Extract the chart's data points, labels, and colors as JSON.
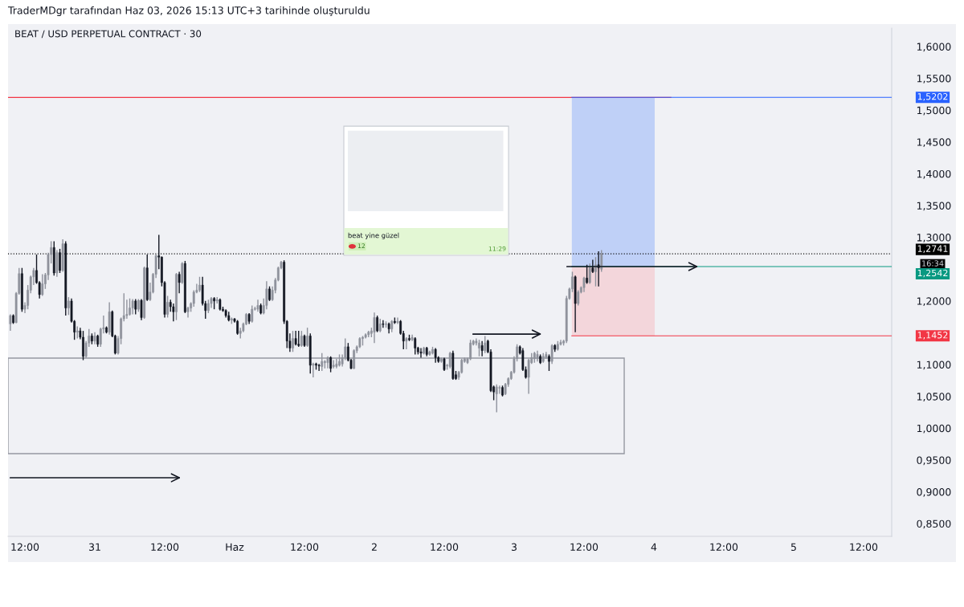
{
  "chart_data": {
    "type": "candlestick",
    "title": "TraderMDgr tarafından Haz 03, 2026 15:13 UTC+3 tarihinde oluşturuldu",
    "subtitle": "BEAT / USD PERPETUAL CONTRACT · 30",
    "annotations": [
      "beat yine güzel",
      "12",
      "11:29",
      "16:34"
    ],
    "x": [
      "2026-05-30T09:30",
      "2026-05-30T10:00",
      "2026-05-30T10:30",
      "2026-05-30T11:00",
      "2026-05-30T11:30",
      "2026-05-30T12:00",
      "2026-05-30T12:30",
      "2026-05-30T13:00",
      "2026-05-30T13:30",
      "2026-05-30T14:00",
      "2026-05-30T14:30",
      "2026-05-30T15:00",
      "2026-05-30T15:30",
      "2026-05-30T16:00",
      "2026-05-30T16:30",
      "2026-05-30T17:00",
      "2026-05-30T17:30",
      "2026-05-30T18:00",
      "2026-05-30T18:30",
      "2026-05-30T19:00",
      "2026-05-30T19:30",
      "2026-05-30T20:00",
      "2026-05-30T20:30",
      "2026-05-30T21:00",
      "2026-05-30T21:30",
      "2026-05-30T22:00",
      "2026-05-30T22:30",
      "2026-05-30T23:00",
      "2026-05-30T23:30",
      "2026-05-31T00:00",
      "2026-05-31T00:30",
      "2026-05-31T01:00",
      "2026-05-31T01:30",
      "2026-05-31T02:00",
      "2026-05-31T02:30",
      "2026-05-31T03:00",
      "2026-05-31T03:30",
      "2026-05-31T04:00",
      "2026-05-31T04:30",
      "2026-05-31T05:00",
      "2026-05-31T05:30",
      "2026-05-31T06:00",
      "2026-05-31T06:30",
      "2026-05-31T07:00",
      "2026-05-31T07:30",
      "2026-05-31T08:00",
      "2026-05-31T08:30",
      "2026-05-31T09:00",
      "2026-05-31T09:30",
      "2026-05-31T10:00",
      "2026-05-31T10:30",
      "2026-05-31T11:00",
      "2026-05-31T11:30",
      "2026-05-31T12:00",
      "2026-05-31T12:30",
      "2026-05-31T13:00",
      "2026-05-31T13:30",
      "2026-05-31T14:00",
      "2026-05-31T14:30",
      "2026-05-31T15:00",
      "2026-05-31T15:30",
      "2026-05-31T16:00",
      "2026-05-31T16:30",
      "2026-05-31T17:00",
      "2026-05-31T17:30",
      "2026-05-31T18:00",
      "2026-05-31T18:30",
      "2026-05-31T19:00",
      "2026-05-31T19:30",
      "2026-05-31T20:00",
      "2026-05-31T20:30",
      "2026-05-31T21:00",
      "2026-05-31T21:30",
      "2026-05-31T22:00",
      "2026-05-31T22:30",
      "2026-05-31T23:00",
      "2026-05-31T23:30",
      "2026-06-01T00:00",
      "2026-06-01T00:30",
      "2026-06-01T01:00",
      "2026-06-01T01:30",
      "2026-06-01T02:00",
      "2026-06-01T02:30",
      "2026-06-01T03:00",
      "2026-06-01T03:30",
      "2026-06-01T04:00",
      "2026-06-01T04:30",
      "2026-06-01T05:00",
      "2026-06-01T05:30",
      "2026-06-01T06:00",
      "2026-06-01T06:30",
      "2026-06-01T07:00",
      "2026-06-01T07:30",
      "2026-06-01T08:00",
      "2026-06-01T08:30",
      "2026-06-01T09:00",
      "2026-06-01T09:30",
      "2026-06-01T10:00",
      "2026-06-01T10:30",
      "2026-06-01T11:00",
      "2026-06-01T11:30",
      "2026-06-01T12:00",
      "2026-06-01T12:30",
      "2026-06-01T13:00",
      "2026-06-01T13:30",
      "2026-06-01T14:00",
      "2026-06-01T14:30",
      "2026-06-01T15:00",
      "2026-06-01T15:30",
      "2026-06-01T16:00",
      "2026-06-01T16:30",
      "2026-06-01T17:00",
      "2026-06-01T17:30",
      "2026-06-01T18:00",
      "2026-06-01T18:30",
      "2026-06-01T19:00",
      "2026-06-01T19:30",
      "2026-06-01T20:00",
      "2026-06-01T20:30",
      "2026-06-01T21:00",
      "2026-06-01T21:30",
      "2026-06-01T22:00",
      "2026-06-01T22:30",
      "2026-06-01T23:00",
      "2026-06-01T23:30",
      "2026-06-02T00:00",
      "2026-06-02T00:30",
      "2026-06-02T01:00",
      "2026-06-02T01:30",
      "2026-06-02T02:00",
      "2026-06-02T02:30",
      "2026-06-02T03:00",
      "2026-06-02T03:30",
      "2026-06-02T04:00",
      "2026-06-02T04:30",
      "2026-06-02T05:00",
      "2026-06-02T05:30",
      "2026-06-02T06:00",
      "2026-06-02T06:30",
      "2026-06-02T07:00",
      "2026-06-02T07:30",
      "2026-06-02T08:00",
      "2026-06-02T08:30",
      "2026-06-02T09:00",
      "2026-06-02T09:30",
      "2026-06-02T10:00",
      "2026-06-02T10:30",
      "2026-06-02T11:00",
      "2026-06-02T11:30",
      "2026-06-02T12:00",
      "2026-06-02T12:30",
      "2026-06-02T13:00",
      "2026-06-02T13:30",
      "2026-06-02T14:00",
      "2026-06-02T14:30",
      "2026-06-02T15:00",
      "2026-06-02T15:30",
      "2026-06-02T16:00",
      "2026-06-02T16:30",
      "2026-06-02T17:00",
      "2026-06-02T17:30",
      "2026-06-02T18:00",
      "2026-06-02T18:30",
      "2026-06-02T19:00",
      "2026-06-02T19:30",
      "2026-06-02T20:00",
      "2026-06-02T20:30",
      "2026-06-02T21:00",
      "2026-06-02T21:30",
      "2026-06-02T22:00",
      "2026-06-02T22:30",
      "2026-06-02T23:00",
      "2026-06-02T23:30",
      "2026-06-03T00:00",
      "2026-06-03T00:30",
      "2026-06-03T01:00",
      "2026-06-03T01:30",
      "2026-06-03T02:00",
      "2026-06-03T02:30",
      "2026-06-03T03:00",
      "2026-06-03T03:30",
      "2026-06-03T04:00",
      "2026-06-03T04:30",
      "2026-06-03T05:00",
      "2026-06-03T05:30",
      "2026-06-03T06:00",
      "2026-06-03T06:30",
      "2026-06-03T07:00",
      "2026-06-03T07:30",
      "2026-06-03T08:00",
      "2026-06-03T08:30",
      "2026-06-03T09:00",
      "2026-06-03T09:30",
      "2026-06-03T10:00",
      "2026-06-03T10:30",
      "2026-06-03T11:00",
      "2026-06-03T11:30",
      "2026-06-03T12:00",
      "2026-06-03T12:30",
      "2026-06-03T13:00",
      "2026-06-03T13:30",
      "2026-06-03T14:00",
      "2026-06-03T14:30",
      "2026-06-03T15:00"
    ],
    "ohlc": [
      [
        1.164,
        1.179,
        1.153,
        1.177
      ],
      [
        1.177,
        1.179,
        1.164,
        1.166
      ],
      [
        1.166,
        1.214,
        1.165,
        1.212
      ],
      [
        1.212,
        1.252,
        1.21,
        1.243
      ],
      [
        1.243,
        1.252,
        1.183,
        1.187
      ],
      [
        1.187,
        1.198,
        1.181,
        1.193
      ],
      [
        1.193,
        1.225,
        1.187,
        1.217
      ],
      [
        1.217,
        1.24,
        1.212,
        1.238
      ],
      [
        1.238,
        1.252,
        1.225,
        1.248
      ],
      [
        1.248,
        1.273,
        1.227,
        1.229
      ],
      [
        1.229,
        1.231,
        1.204,
        1.21
      ],
      [
        1.21,
        1.242,
        1.208,
        1.227
      ],
      [
        1.227,
        1.244,
        1.219,
        1.241
      ],
      [
        1.241,
        1.276,
        1.233,
        1.273
      ],
      [
        1.273,
        1.294,
        1.259,
        1.284
      ],
      [
        1.284,
        1.294,
        1.24,
        1.244
      ],
      [
        1.244,
        1.28,
        1.238,
        1.276
      ],
      [
        1.276,
        1.282,
        1.244,
        1.248
      ],
      [
        1.248,
        1.297,
        1.246,
        1.29
      ],
      [
        1.29,
        1.294,
        1.177,
        1.189
      ],
      [
        1.189,
        1.206,
        1.178,
        1.2
      ],
      [
        1.2,
        1.204,
        1.166,
        1.168
      ],
      [
        1.168,
        1.17,
        1.139,
        1.151
      ],
      [
        1.151,
        1.16,
        1.141,
        1.153
      ],
      [
        1.153,
        1.158,
        1.14,
        1.143
      ],
      [
        1.143,
        1.153,
        1.107,
        1.113
      ],
      [
        1.113,
        1.137,
        1.111,
        1.134
      ],
      [
        1.134,
        1.156,
        1.128,
        1.145
      ],
      [
        1.145,
        1.149,
        1.132,
        1.137
      ],
      [
        1.137,
        1.151,
        1.132,
        1.145
      ],
      [
        1.145,
        1.147,
        1.128,
        1.132
      ],
      [
        1.132,
        1.158,
        1.128,
        1.156
      ],
      [
        1.156,
        1.177,
        1.149,
        1.158
      ],
      [
        1.158,
        1.16,
        1.149,
        1.151
      ],
      [
        1.151,
        1.198,
        1.147,
        1.183
      ],
      [
        1.183,
        1.185,
        1.143,
        1.145
      ],
      [
        1.145,
        1.147,
        1.116,
        1.118
      ],
      [
        1.118,
        1.145,
        1.116,
        1.141
      ],
      [
        1.141,
        1.174,
        1.132,
        1.172
      ],
      [
        1.172,
        1.212,
        1.168,
        1.177
      ],
      [
        1.177,
        1.202,
        1.172,
        1.179
      ],
      [
        1.179,
        1.204,
        1.177,
        1.189
      ],
      [
        1.189,
        1.203,
        1.179,
        1.2
      ],
      [
        1.2,
        1.203,
        1.179,
        1.187
      ],
      [
        1.187,
        1.203,
        1.183,
        1.201
      ],
      [
        1.201,
        1.203,
        1.17,
        1.174
      ],
      [
        1.174,
        1.254,
        1.172,
        1.252
      ],
      [
        1.252,
        1.273,
        1.2,
        1.202
      ],
      [
        1.202,
        1.229,
        1.2,
        1.214
      ],
      [
        1.214,
        1.244,
        1.212,
        1.242
      ],
      [
        1.242,
        1.273,
        1.236,
        1.271
      ],
      [
        1.271,
        1.304,
        1.25,
        1.269
      ],
      [
        1.269,
        1.27,
        1.223,
        1.229
      ],
      [
        1.229,
        1.231,
        1.174,
        1.179
      ],
      [
        1.179,
        1.208,
        1.174,
        1.198
      ],
      [
        1.198,
        1.202,
        1.183,
        1.191
      ],
      [
        1.191,
        1.196,
        1.168,
        1.183
      ],
      [
        1.183,
        1.244,
        1.17,
        1.242
      ],
      [
        1.242,
        1.246,
        1.212,
        1.229
      ],
      [
        1.229,
        1.261,
        1.227,
        1.259
      ],
      [
        1.259,
        1.263,
        1.181,
        1.183
      ],
      [
        1.183,
        1.191,
        1.174,
        1.189
      ],
      [
        1.189,
        1.198,
        1.183,
        1.196
      ],
      [
        1.196,
        1.217,
        1.191,
        1.214
      ],
      [
        1.214,
        1.227,
        1.212,
        1.217
      ],
      [
        1.217,
        1.238,
        1.214,
        1.225
      ],
      [
        1.225,
        1.238,
        1.193,
        1.196
      ],
      [
        1.196,
        1.2,
        1.172,
        1.185
      ],
      [
        1.185,
        1.202,
        1.181,
        1.196
      ],
      [
        1.196,
        1.206,
        1.189,
        1.204
      ],
      [
        1.204,
        1.206,
        1.187,
        1.2
      ],
      [
        1.2,
        1.206,
        1.196,
        1.202
      ],
      [
        1.202,
        1.204,
        1.185,
        1.187
      ],
      [
        1.187,
        1.191,
        1.183,
        1.185
      ],
      [
        1.185,
        1.187,
        1.174,
        1.177
      ],
      [
        1.177,
        1.183,
        1.168,
        1.17
      ],
      [
        1.17,
        1.174,
        1.164,
        1.172
      ],
      [
        1.172,
        1.173,
        1.166,
        1.168
      ],
      [
        1.168,
        1.17,
        1.147,
        1.149
      ],
      [
        1.149,
        1.158,
        1.141,
        1.153
      ],
      [
        1.153,
        1.166,
        1.151,
        1.164
      ],
      [
        1.164,
        1.181,
        1.162,
        1.179
      ],
      [
        1.179,
        1.181,
        1.164,
        1.168
      ],
      [
        1.168,
        1.193,
        1.166,
        1.187
      ],
      [
        1.187,
        1.191,
        1.185,
        1.188
      ],
      [
        1.187,
        1.202,
        1.183,
        1.193
      ],
      [
        1.193,
        1.196,
        1.179,
        1.181
      ],
      [
        1.181,
        1.204,
        1.179,
        1.193
      ],
      [
        1.193,
        1.231,
        1.187,
        1.219
      ],
      [
        1.219,
        1.223,
        1.2,
        1.202
      ],
      [
        1.202,
        1.223,
        1.2,
        1.217
      ],
      [
        1.217,
        1.236,
        1.212,
        1.233
      ],
      [
        1.233,
        1.254,
        1.231,
        1.252
      ],
      [
        1.252,
        1.263,
        1.25,
        1.261
      ],
      [
        1.261,
        1.264,
        1.164,
        1.168
      ],
      [
        1.168,
        1.17,
        1.126,
        1.137
      ],
      [
        1.137,
        1.149,
        1.12,
        1.126
      ],
      [
        1.126,
        1.153,
        1.12,
        1.141
      ],
      [
        1.141,
        1.153,
        1.13,
        1.132
      ],
      [
        1.132,
        1.153,
        1.128,
        1.13
      ],
      [
        1.13,
        1.153,
        1.128,
        1.145
      ],
      [
        1.145,
        1.147,
        1.128,
        1.13
      ],
      [
        1.13,
        1.158,
        1.128,
        1.145
      ],
      [
        1.145,
        1.149,
        1.086,
        1.099
      ],
      [
        1.099,
        1.103,
        1.08,
        1.101
      ],
      [
        1.101,
        1.103,
        1.092,
        1.099
      ],
      [
        1.099,
        1.101,
        1.09,
        1.098
      ],
      [
        1.097,
        1.118,
        1.09,
        1.105
      ],
      [
        1.103,
        1.107,
        1.094,
        1.105
      ],
      [
        1.103,
        1.113,
        1.094,
        1.111
      ],
      [
        1.111,
        1.113,
        1.088,
        1.094
      ],
      [
        1.097,
        1.107,
        1.094,
        1.099
      ],
      [
        1.097,
        1.109,
        1.094,
        1.101
      ],
      [
        1.099,
        1.116,
        1.097,
        1.105
      ],
      [
        1.101,
        1.116,
        1.097,
        1.111
      ],
      [
        1.111,
        1.141,
        1.107,
        1.128
      ],
      [
        1.128,
        1.134,
        1.105,
        1.107
      ],
      [
        1.107,
        1.109,
        1.093,
        1.094
      ],
      [
        1.094,
        1.124,
        1.093,
        1.122
      ],
      [
        1.122,
        1.13,
        1.118,
        1.128
      ],
      [
        1.128,
        1.143,
        1.126,
        1.141
      ],
      [
        1.141,
        1.145,
        1.13,
        1.143
      ],
      [
        1.143,
        1.149,
        1.141,
        1.147
      ],
      [
        1.147,
        1.153,
        1.143,
        1.151
      ],
      [
        1.149,
        1.158,
        1.143,
        1.153
      ],
      [
        1.151,
        1.182,
        1.134,
        1.174
      ],
      [
        1.174,
        1.177,
        1.151,
        1.153
      ],
      [
        1.153,
        1.172,
        1.151,
        1.164
      ],
      [
        1.164,
        1.17,
        1.158,
        1.163
      ],
      [
        1.163,
        1.168,
        1.158,
        1.164
      ],
      [
        1.164,
        1.166,
        1.149,
        1.156
      ],
      [
        1.156,
        1.17,
        1.151,
        1.168
      ],
      [
        1.168,
        1.174,
        1.164,
        1.166
      ],
      [
        1.166,
        1.174,
        1.164,
        1.168
      ],
      [
        1.168,
        1.17,
        1.147,
        1.149
      ],
      [
        1.149,
        1.153,
        1.124,
        1.137
      ],
      [
        1.137,
        1.143,
        1.124,
        1.141
      ],
      [
        1.141,
        1.147,
        1.137,
        1.139
      ],
      [
        1.139,
        1.147,
        1.137,
        1.143
      ],
      [
        1.141,
        1.143,
        1.116,
        1.126
      ],
      [
        1.126,
        1.128,
        1.116,
        1.12
      ],
      [
        1.12,
        1.126,
        1.111,
        1.118
      ],
      [
        1.118,
        1.128,
        1.116,
        1.126
      ],
      [
        1.126,
        1.128,
        1.113,
        1.116
      ],
      [
        1.116,
        1.122,
        1.114,
        1.12
      ],
      [
        1.118,
        1.128,
        1.116,
        1.124
      ],
      [
        1.124,
        1.126,
        1.103,
        1.111
      ],
      [
        1.111,
        1.113,
        1.103,
        1.105
      ],
      [
        1.105,
        1.111,
        1.103,
        1.109
      ],
      [
        1.109,
        1.111,
        1.09,
        1.092
      ],
      [
        1.098,
        1.101,
        1.092,
        1.099
      ],
      [
        1.097,
        1.12,
        1.094,
        1.118
      ],
      [
        1.118,
        1.122,
        1.076,
        1.078
      ],
      [
        1.084,
        1.09,
        1.076,
        1.078
      ],
      [
        1.08,
        1.09,
        1.076,
        1.088
      ],
      [
        1.088,
        1.109,
        1.086,
        1.107
      ],
      [
        1.105,
        1.111,
        1.103,
        1.109
      ],
      [
        1.103,
        1.111,
        1.101,
        1.109
      ],
      [
        1.109,
        1.139,
        1.107,
        1.134
      ],
      [
        1.132,
        1.139,
        1.13,
        1.137
      ],
      [
        1.134,
        1.141,
        1.13,
        1.137
      ],
      [
        1.126,
        1.139,
        1.113,
        1.134
      ],
      [
        1.13,
        1.137,
        1.113,
        1.122
      ],
      [
        1.122,
        1.145,
        1.118,
        1.134
      ],
      [
        1.137,
        1.139,
        1.118,
        1.12
      ],
      [
        1.12,
        1.124,
        1.057,
        1.059
      ],
      [
        1.065,
        1.067,
        1.044,
        1.057
      ],
      [
        1.054,
        1.069,
        1.025,
        1.065
      ],
      [
        1.063,
        1.067,
        1.054,
        1.064
      ],
      [
        1.064,
        1.067,
        1.05,
        1.052
      ],
      [
        1.054,
        1.071,
        1.052,
        1.069
      ],
      [
        1.069,
        1.08,
        1.065,
        1.078
      ],
      [
        1.078,
        1.09,
        1.076,
        1.088
      ],
      [
        1.088,
        1.113,
        1.086,
        1.109
      ],
      [
        1.109,
        1.132,
        1.105,
        1.128
      ],
      [
        1.128,
        1.13,
        1.116,
        1.118
      ],
      [
        1.122,
        1.126,
        1.09,
        1.092
      ],
      [
        1.092,
        1.097,
        1.078,
        1.08
      ],
      [
        1.08,
        1.109,
        1.054,
        1.107
      ],
      [
        1.103,
        1.118,
        1.101,
        1.111
      ],
      [
        1.109,
        1.12,
        1.103,
        1.118
      ],
      [
        1.109,
        1.122,
        1.105,
        1.116
      ],
      [
        1.113,
        1.116,
        1.101,
        1.103
      ],
      [
        1.105,
        1.118,
        1.103,
        1.113
      ],
      [
        1.111,
        1.12,
        1.109,
        1.116
      ],
      [
        1.113,
        1.116,
        1.09,
        1.105
      ],
      [
        1.105,
        1.132,
        1.101,
        1.13
      ],
      [
        1.13,
        1.132,
        1.12,
        1.124
      ],
      [
        1.124,
        1.137,
        1.122,
        1.132
      ],
      [
        1.132,
        1.139,
        1.13,
        1.135
      ],
      [
        1.134,
        1.139,
        1.13,
        1.137
      ],
      [
        1.137,
        1.208,
        1.134,
        1.204
      ],
      [
        1.204,
        1.221,
        1.202,
        1.219
      ],
      [
        1.219,
        1.246,
        1.214,
        1.238
      ],
      [
        1.238,
        1.24,
        1.151,
        1.196
      ],
      [
        1.196,
        1.217,
        1.193,
        1.214
      ],
      [
        1.214,
        1.223,
        1.212,
        1.221
      ],
      [
        1.221,
        1.238,
        1.214,
        1.236
      ],
      [
        1.236,
        1.257,
        1.227,
        1.229
      ],
      [
        1.229,
        1.259,
        1.227,
        1.252
      ],
      [
        1.252,
        1.265,
        1.244,
        1.246
      ],
      [
        1.246,
        1.269,
        1.223,
        1.257
      ],
      [
        1.257,
        1.278,
        1.223,
        1.252
      ],
      [
        1.25,
        1.28,
        1.246,
        1.2741
      ]
    ],
    "xlim": [
      "2026-05-30T09:06",
      "2026-06-05T16:50"
    ],
    "xticks": [
      {
        "value": "2026-05-30T12:00",
        "label": "12:00"
      },
      {
        "value": "2026-05-31T00:00",
        "label": "31"
      },
      {
        "value": "2026-05-31T12:00",
        "label": "12:00"
      },
      {
        "value": "2026-06-01T00:00",
        "label": "Haz"
      },
      {
        "value": "2026-06-01T12:00",
        "label": "12:00"
      },
      {
        "value": "2026-06-02T00:00",
        "label": "2"
      },
      {
        "value": "2026-06-02T12:00",
        "label": "12:00"
      },
      {
        "value": "2026-06-03T00:00",
        "label": "3"
      },
      {
        "value": "2026-06-03T12:00",
        "label": "12:00"
      },
      {
        "value": "2026-06-04T00:00",
        "label": "4"
      },
      {
        "value": "2026-06-04T12:00",
        "label": "12:00"
      },
      {
        "value": "2026-06-05T00:00",
        "label": "5"
      },
      {
        "value": "2026-06-05T12:00",
        "label": "12:00"
      }
    ],
    "ylim": [
      0.83,
      1.629
    ],
    "yticks": [
      {
        "value": 0.85,
        "label": "0,8500"
      },
      {
        "value": 0.9,
        "label": "0,9000"
      },
      {
        "value": 0.95,
        "label": "0,9500"
      },
      {
        "value": 1.0,
        "label": "1,0000"
      },
      {
        "value": 1.05,
        "label": "1,0500"
      },
      {
        "value": 1.1,
        "label": "1,1000"
      },
      {
        "value": 1.2,
        "label": "1,2000"
      },
      {
        "value": 1.3,
        "label": "1,3000"
      },
      {
        "value": 1.35,
        "label": "1,3500"
      },
      {
        "value": 1.4,
        "label": "1,4000"
      },
      {
        "value": 1.45,
        "label": "1,4500"
      },
      {
        "value": 1.5,
        "label": "1,5000"
      },
      {
        "value": 1.55,
        "label": "1,5500"
      },
      {
        "value": 1.6,
        "label": "1,6000"
      }
    ],
    "bands": [
      {
        "axis": "y",
        "from": 1.2542,
        "to": 1.5202,
        "color": "#bfd0f7"
      },
      {
        "axis": "y",
        "from": 1.1452,
        "to": 1.2542,
        "color": "#f3d6db"
      }
    ],
    "ref_lines": [
      {
        "axis": "y",
        "value": 1.52,
        "color": "#f23645",
        "line_style": "solid"
      },
      {
        "axis": "y",
        "value": 1.5202,
        "label": "1,5202",
        "color": "#2962ff",
        "line_style": "solid"
      },
      {
        "axis": "y",
        "value": 1.2741,
        "label": "1,2741",
        "color": "#000000",
        "line_style": "dotted"
      },
      {
        "axis": "y",
        "value": 1.2542,
        "label": "1,2542",
        "color": "#089981",
        "line_style": "solid"
      },
      {
        "axis": "y",
        "value": 1.1452,
        "label": "1,1452",
        "color": "#f23645",
        "line_style": "solid"
      }
    ]
  }
}
